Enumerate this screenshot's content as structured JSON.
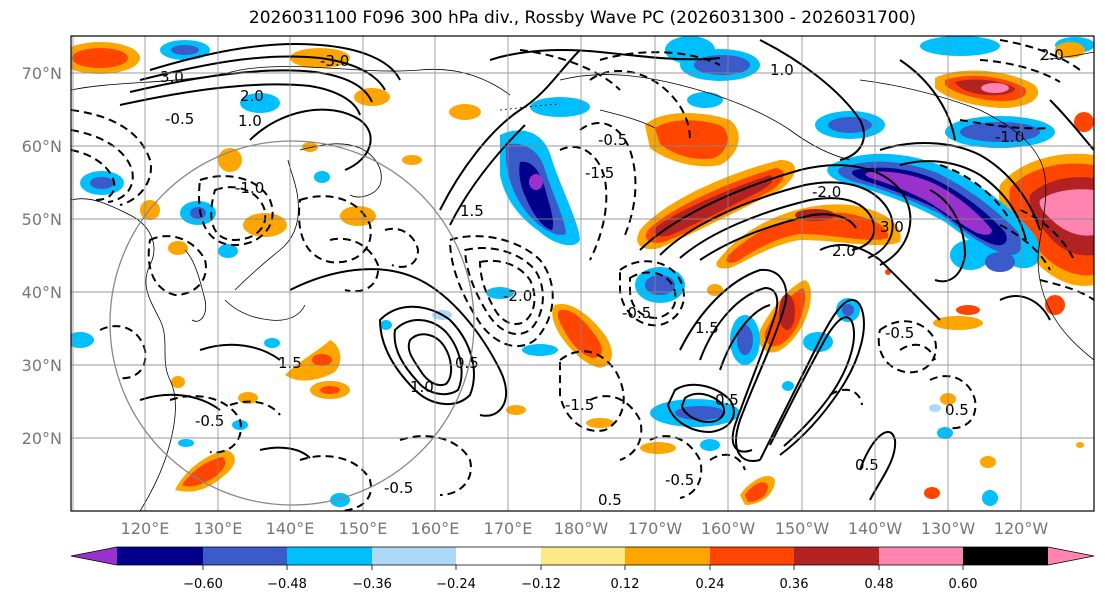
{
  "title": "2026031100 F096 300 hPa div., Rossby Wave PC (2026031300 - 2026031700)",
  "map": {
    "lat_labels": [
      "70°N",
      "60°N",
      "50°N",
      "40°N",
      "30°N",
      "20°N"
    ],
    "lon_labels": [
      "120°E",
      "130°E",
      "140°E",
      "150°E",
      "160°E",
      "170°E",
      "180°W",
      "170°W",
      "160°W",
      "150°W",
      "140°W",
      "130°W",
      "120°W"
    ],
    "contour_labels": [
      "3.0",
      "-3.0",
      "-0.5",
      "1.0",
      "-1.0",
      "2.0",
      "1.5",
      "-2.0",
      "0.5",
      "-1.5",
      "-0.5",
      "3.0",
      "-2.0",
      "1.5",
      "0.5",
      "-0.5",
      "2.0",
      "1.0",
      "-0.5",
      "0.5",
      "-0.5",
      "1.0",
      "0.5",
      "2.0",
      "-1.0",
      "0.5",
      "-0.5",
      "-1.5",
      "1.5",
      "-0.5"
    ]
  },
  "colorbar": {
    "tick_labels": [
      "−0.60",
      "−0.48",
      "−0.36",
      "−0.24",
      "−0.12",
      "0.12",
      "0.24",
      "0.36",
      "0.48",
      "0.60"
    ],
    "colors": [
      "#9932CC",
      "#00008B",
      "#3A5BC9",
      "#00BFFF",
      "#ADD8F6",
      "#FFFFFF",
      "#FFE987",
      "#FFA500",
      "#FF4500",
      "#B22222",
      "#FF85B0"
    ]
  },
  "colors": {
    "grid": "#888888",
    "axis_text": "#777777"
  }
}
